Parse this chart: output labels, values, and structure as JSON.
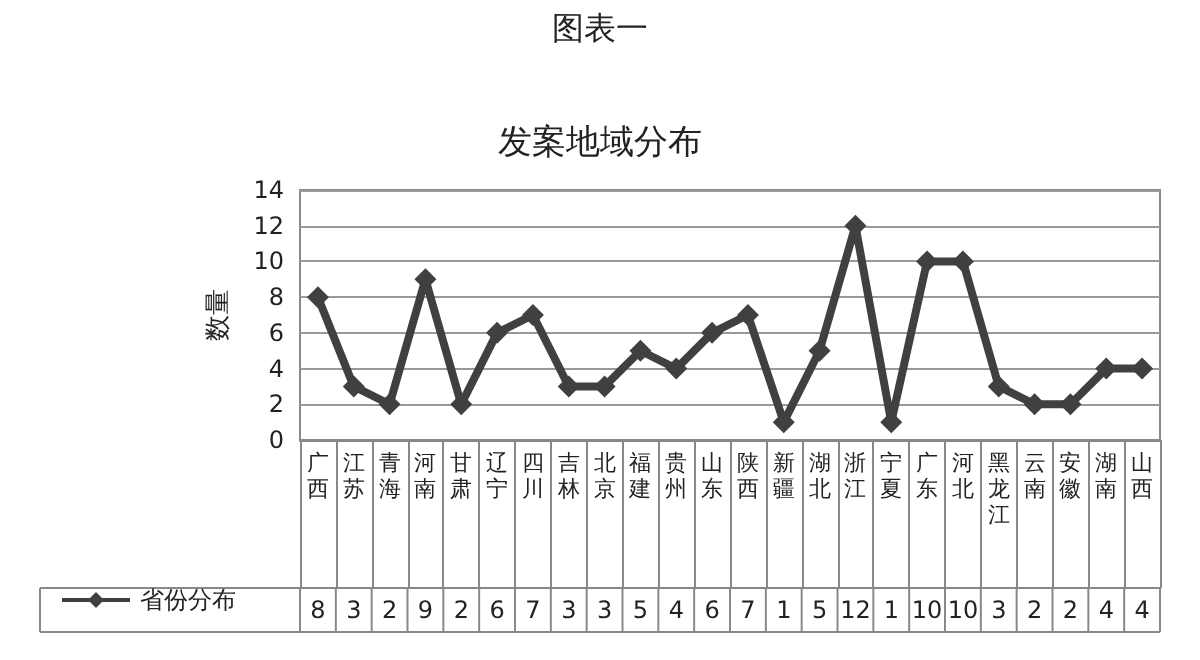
{
  "chart_data": {
    "type": "line",
    "title": "发案地域分布",
    "annotations": [
      "图表一"
    ],
    "ylabel": "数量",
    "categories": [
      "广西",
      "江苏",
      "青海",
      "河南",
      "甘肃",
      "辽宁",
      "四川",
      "吉林",
      "北京",
      "福建",
      "贵州",
      "山东",
      "陕西",
      "新疆",
      "湖北",
      "浙江",
      "宁夏",
      "广东",
      "河北",
      "黑龙江",
      "云南",
      "安徽",
      "湖南",
      "山西"
    ],
    "series": [
      {
        "name": "省份分布",
        "color": "#404040",
        "values": [
          8,
          3,
          2,
          9,
          2,
          6,
          7,
          3,
          3,
          5,
          4,
          6,
          7,
          1,
          5,
          12,
          1,
          10,
          10,
          3,
          2,
          2,
          4,
          4
        ]
      }
    ],
    "ylim": [
      0,
      14
    ],
    "yticks": [
      0,
      2,
      4,
      6,
      8,
      10,
      12,
      14
    ],
    "grid": "y",
    "legend": "bottom left",
    "marker": "diamond",
    "line_style": "solid",
    "data_labels": true
  }
}
